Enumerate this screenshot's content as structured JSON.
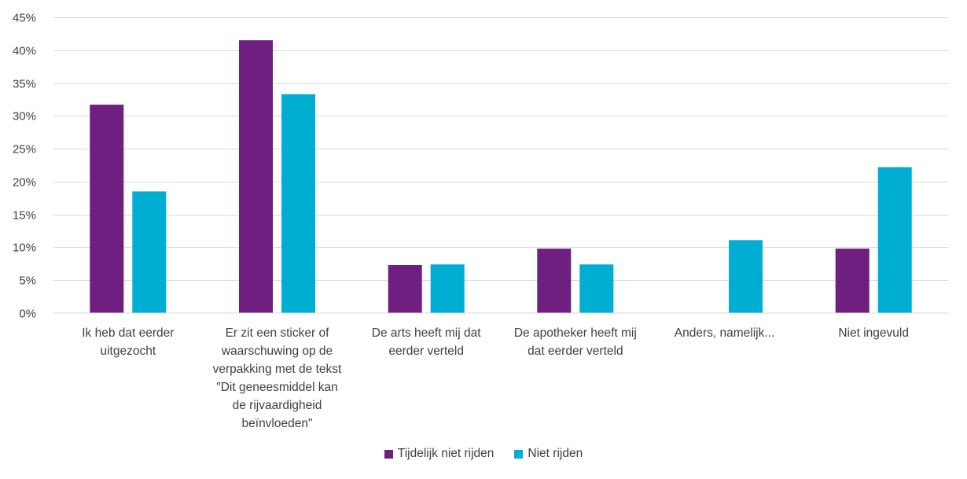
{
  "chart_data": {
    "type": "bar",
    "title": "",
    "xlabel": "",
    "ylabel": "",
    "ylim": [
      0,
      45
    ],
    "yticks": [
      "0%",
      "5%",
      "10%",
      "15%",
      "20%",
      "25%",
      "30%",
      "35%",
      "40%",
      "45%"
    ],
    "ytick_values": [
      0,
      5,
      10,
      15,
      20,
      25,
      30,
      35,
      40,
      45
    ],
    "grid": true,
    "legend_position": "bottom",
    "categories": [
      "Ik heb dat eerder\nuitgezocht",
      "Er zit een sticker of\nwaarschuwing op de\nverpakking met de tekst\n\"Dit geneesmiddel kan\nde rijvaardigheid\nbeïnvloeden\"",
      "De arts heeft mij dat\neerder verteld",
      "De apotheker heeft mij\ndat eerder verteld",
      "Anders, namelijk...",
      "Niet ingevuld"
    ],
    "series": [
      {
        "name": "Tijdelijk niet rijden",
        "color": "#6E1F80",
        "values": [
          31.7,
          41.5,
          7.3,
          9.8,
          0,
          9.8
        ]
      },
      {
        "name": "Niet rijden",
        "color": "#00AED4",
        "values": [
          18.5,
          33.3,
          7.4,
          7.4,
          11.1,
          22.2
        ]
      }
    ]
  }
}
